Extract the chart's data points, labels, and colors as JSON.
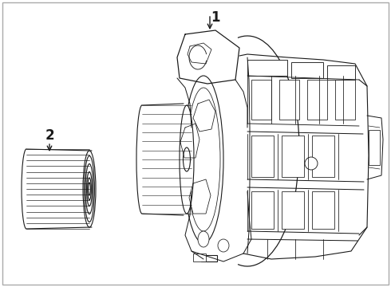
{
  "background_color": "#ffffff",
  "line_color": "#1a1a1a",
  "light_line_color": "#555555",
  "line_width": 0.8,
  "label1": "1",
  "label2": "2",
  "figsize": [
    4.9,
    3.6
  ],
  "dpi": 100
}
